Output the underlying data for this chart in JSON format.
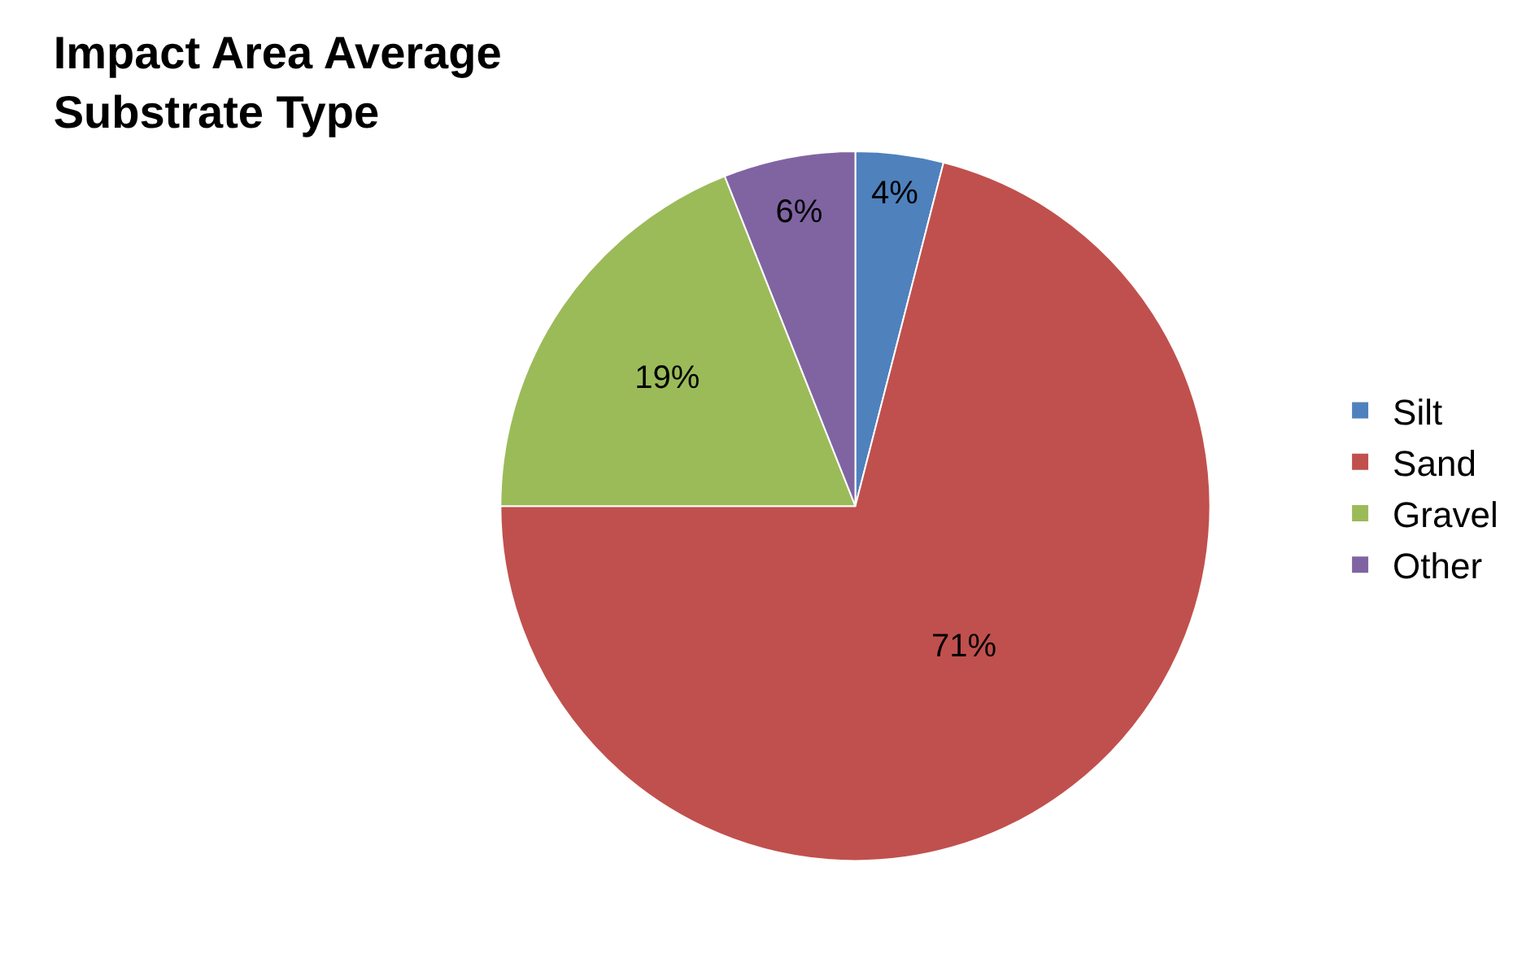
{
  "chart_data": {
    "type": "pie",
    "title": "Impact Area Average\nSubstrate Type",
    "categories": [
      "Silt",
      "Sand",
      "Gravel",
      "Other"
    ],
    "values": [
      4,
      71,
      19,
      6
    ],
    "value_labels": [
      "4%",
      "71%",
      "19%",
      "6%"
    ],
    "colors": [
      "#4f81bd",
      "#c0504d",
      "#9bbb59",
      "#8064a2"
    ],
    "legend": "right"
  }
}
